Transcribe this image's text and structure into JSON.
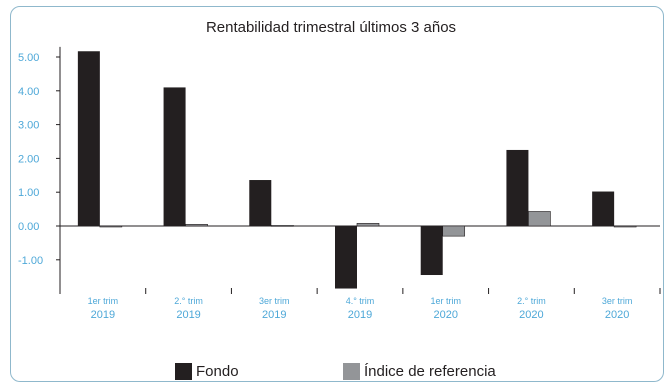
{
  "chart_data": {
    "type": "bar",
    "title": "Rentabilidad trimestral últimos 3 años",
    "xlabel": "",
    "ylabel": "",
    "ylim": [
      -1.9,
      5.3
    ],
    "yticks": [
      "5.00",
      "4.00",
      "3.00",
      "2.00",
      "1.00",
      "0.00",
      "-1.00"
    ],
    "categories": [
      [
        "1er trim",
        "2019"
      ],
      [
        "2.° trim",
        "2019"
      ],
      [
        "3er trim",
        "2019"
      ],
      [
        "4.° trim",
        "2019"
      ],
      [
        "1er trim",
        "2020"
      ],
      [
        "2.° trim",
        "2020"
      ],
      [
        "3er trim",
        "2020"
      ]
    ],
    "series": [
      {
        "name": "Fondo",
        "color": "#231f20",
        "values": [
          5.17,
          4.1,
          1.36,
          -1.85,
          -1.45,
          2.25,
          1.02
        ]
      },
      {
        "name": "Índice de referencia",
        "color": "#939598",
        "values": [
          -0.02,
          0.05,
          0.02,
          0.08,
          -0.3,
          0.43,
          -0.01
        ]
      }
    ],
    "grid": false,
    "legend_position": "bottom",
    "colors": {
      "axis_text": "#4ea8d8",
      "border": "#8fb8cc",
      "zero_line": "#231f20"
    }
  }
}
